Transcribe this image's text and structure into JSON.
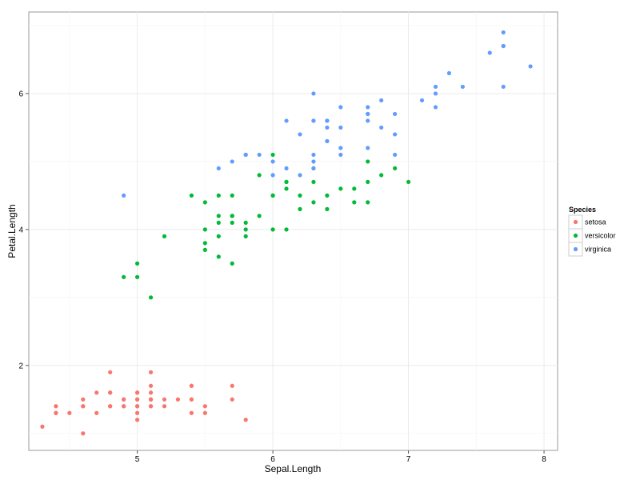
{
  "chart_data": {
    "type": "scatter",
    "title": "",
    "xlabel": "Sepal.Length",
    "ylabel": "Petal.Length",
    "xlim": [
      4.2,
      8.1
    ],
    "ylim": [
      0.75,
      7.2
    ],
    "x_ticks": [
      5,
      6,
      7,
      8
    ],
    "y_ticks": [
      2,
      4,
      6
    ],
    "grid": true,
    "legend": {
      "title": "Species",
      "placement": "right"
    },
    "series": [
      {
        "name": "setosa",
        "color": "#F8766D",
        "points": [
          [
            4.3,
            1.1
          ],
          [
            4.4,
            1.4
          ],
          [
            4.4,
            1.3
          ],
          [
            4.4,
            1.3
          ],
          [
            4.5,
            1.3
          ],
          [
            4.6,
            1.5
          ],
          [
            4.6,
            1.4
          ],
          [
            4.6,
            1.0
          ],
          [
            4.6,
            1.4
          ],
          [
            4.7,
            1.6
          ],
          [
            4.7,
            1.3
          ],
          [
            4.8,
            1.6
          ],
          [
            4.8,
            1.4
          ],
          [
            4.8,
            1.9
          ],
          [
            4.8,
            1.6
          ],
          [
            4.8,
            1.4
          ],
          [
            4.9,
            1.5
          ],
          [
            4.9,
            1.4
          ],
          [
            4.9,
            1.5
          ],
          [
            4.9,
            1.4
          ],
          [
            5.0,
            1.6
          ],
          [
            5.0,
            1.5
          ],
          [
            5.0,
            1.4
          ],
          [
            5.0,
            1.3
          ],
          [
            5.0,
            1.2
          ],
          [
            5.0,
            1.6
          ],
          [
            5.0,
            1.4
          ],
          [
            5.0,
            1.5
          ],
          [
            5.1,
            1.5
          ],
          [
            5.1,
            1.4
          ],
          [
            5.1,
            1.7
          ],
          [
            5.1,
            1.6
          ],
          [
            5.1,
            1.9
          ],
          [
            5.1,
            1.5
          ],
          [
            5.1,
            1.4
          ],
          [
            5.1,
            1.5
          ],
          [
            5.2,
            1.5
          ],
          [
            5.2,
            1.4
          ],
          [
            5.3,
            1.5
          ],
          [
            5.4,
            1.7
          ],
          [
            5.4,
            1.5
          ],
          [
            5.4,
            1.3
          ],
          [
            5.4,
            1.7
          ],
          [
            5.4,
            1.5
          ],
          [
            5.5,
            1.4
          ],
          [
            5.5,
            1.3
          ],
          [
            5.7,
            1.7
          ],
          [
            5.7,
            1.5
          ],
          [
            5.8,
            1.2
          ]
        ]
      },
      {
        "name": "versicolor",
        "color": "#00BA38",
        "points": [
          [
            4.9,
            3.3
          ],
          [
            5.0,
            3.5
          ],
          [
            5.0,
            3.3
          ],
          [
            5.1,
            3.0
          ],
          [
            5.2,
            3.9
          ],
          [
            5.4,
            4.5
          ],
          [
            5.5,
            4.0
          ],
          [
            5.5,
            4.4
          ],
          [
            5.5,
            3.8
          ],
          [
            5.5,
            3.7
          ],
          [
            5.6,
            4.5
          ],
          [
            5.6,
            3.6
          ],
          [
            5.6,
            4.2
          ],
          [
            5.6,
            4.1
          ],
          [
            5.6,
            3.9
          ],
          [
            5.7,
            4.5
          ],
          [
            5.7,
            3.5
          ],
          [
            5.7,
            4.2
          ],
          [
            5.7,
            4.2
          ],
          [
            5.7,
            4.1
          ],
          [
            5.8,
            4.1
          ],
          [
            5.8,
            4.0
          ],
          [
            5.8,
            3.9
          ],
          [
            5.9,
            4.8
          ],
          [
            5.9,
            4.2
          ],
          [
            6.0,
            4.5
          ],
          [
            6.0,
            4.0
          ],
          [
            6.0,
            5.1
          ],
          [
            6.0,
            4.5
          ],
          [
            6.1,
            4.7
          ],
          [
            6.1,
            4.0
          ],
          [
            6.1,
            4.7
          ],
          [
            6.1,
            4.6
          ],
          [
            6.2,
            4.3
          ],
          [
            6.2,
            4.5
          ],
          [
            6.3,
            4.7
          ],
          [
            6.3,
            4.9
          ],
          [
            6.3,
            4.4
          ],
          [
            6.4,
            4.5
          ],
          [
            6.4,
            4.3
          ],
          [
            6.5,
            4.6
          ],
          [
            6.6,
            4.6
          ],
          [
            6.6,
            4.4
          ],
          [
            6.7,
            4.7
          ],
          [
            6.7,
            4.4
          ],
          [
            6.7,
            5.0
          ],
          [
            6.8,
            4.8
          ],
          [
            6.9,
            4.9
          ],
          [
            7.0,
            4.7
          ]
        ]
      },
      {
        "name": "virginica",
        "color": "#619CFF",
        "points": [
          [
            4.9,
            4.5
          ],
          [
            5.6,
            4.9
          ],
          [
            5.7,
            5.0
          ],
          [
            5.8,
            5.1
          ],
          [
            5.8,
            5.1
          ],
          [
            5.8,
            5.1
          ],
          [
            5.9,
            5.1
          ],
          [
            6.0,
            5.0
          ],
          [
            6.0,
            4.8
          ],
          [
            6.1,
            5.6
          ],
          [
            6.1,
            4.9
          ],
          [
            6.2,
            5.4
          ],
          [
            6.2,
            4.8
          ],
          [
            6.3,
            6.0
          ],
          [
            6.3,
            5.1
          ],
          [
            6.3,
            5.6
          ],
          [
            6.3,
            4.9
          ],
          [
            6.3,
            5.0
          ],
          [
            6.3,
            5.6
          ],
          [
            6.4,
            5.6
          ],
          [
            6.4,
            5.3
          ],
          [
            6.4,
            5.5
          ],
          [
            6.4,
            5.3
          ],
          [
            6.4,
            5.6
          ],
          [
            6.5,
            5.8
          ],
          [
            6.5,
            5.1
          ],
          [
            6.5,
            5.5
          ],
          [
            6.5,
            5.2
          ],
          [
            6.7,
            5.7
          ],
          [
            6.7,
            5.8
          ],
          [
            6.7,
            5.6
          ],
          [
            6.7,
            5.7
          ],
          [
            6.7,
            5.2
          ],
          [
            6.8,
            5.9
          ],
          [
            6.8,
            5.5
          ],
          [
            6.9,
            5.4
          ],
          [
            6.9,
            5.1
          ],
          [
            6.9,
            5.7
          ],
          [
            7.1,
            5.9
          ],
          [
            7.2,
            6.1
          ],
          [
            7.2,
            6.0
          ],
          [
            7.2,
            5.8
          ],
          [
            7.3,
            6.3
          ],
          [
            7.4,
            6.1
          ],
          [
            7.6,
            6.6
          ],
          [
            7.7,
            6.7
          ],
          [
            7.7,
            6.9
          ],
          [
            7.7,
            6.7
          ],
          [
            7.7,
            6.1
          ],
          [
            7.9,
            6.4
          ]
        ]
      }
    ]
  }
}
